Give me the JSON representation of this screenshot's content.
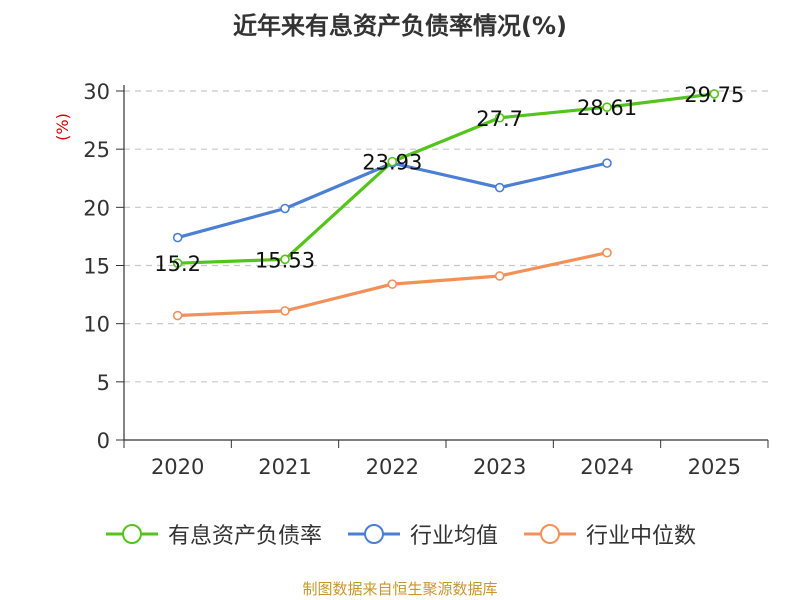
{
  "title": "近年来有息资产负债率情况(%)",
  "source": "制图数据来自恒生聚源数据库",
  "chart_data": {
    "type": "line",
    "title": "近年来有息资产负债率情况(%)",
    "xlabel": "",
    "ylabel": "(%)",
    "ylim": [
      0,
      30
    ],
    "yticks": [
      0,
      5,
      10,
      15,
      20,
      25,
      30
    ],
    "categories": [
      "2020",
      "2021",
      "2022",
      "2023",
      "2024",
      "2025"
    ],
    "grid": true,
    "legend_position": "bottom",
    "series": [
      {
        "name": "有息资产负债率",
        "color": "#52c41a",
        "values": [
          15.2,
          15.53,
          23.93,
          27.7,
          28.61,
          29.75
        ],
        "labels": [
          "15.2",
          "15.53",
          "23.93",
          "27.7",
          "28.61",
          "29.75"
        ]
      },
      {
        "name": "行业均值",
        "color": "#4a7fd4",
        "values": [
          17.4,
          19.9,
          23.8,
          21.7,
          23.8,
          null
        ]
      },
      {
        "name": "行业中位数",
        "color": "#f2905a",
        "values": [
          10.7,
          11.1,
          13.4,
          14.1,
          16.1,
          null
        ]
      }
    ]
  }
}
